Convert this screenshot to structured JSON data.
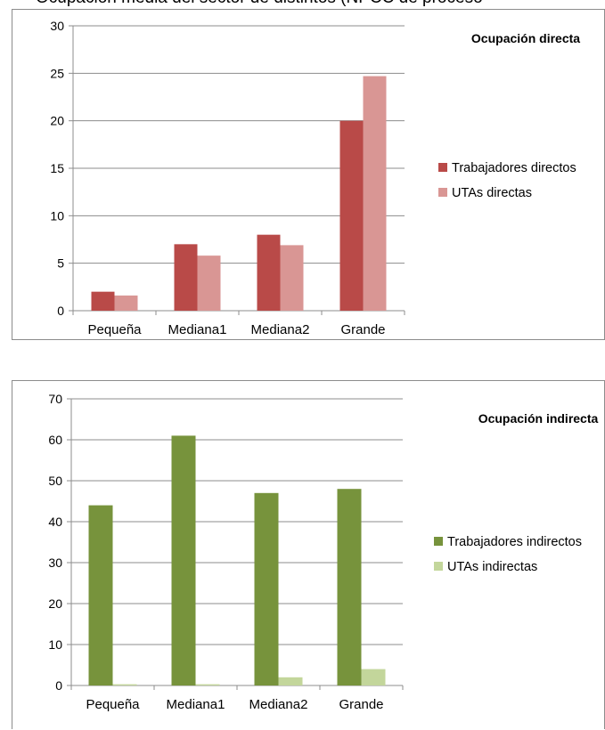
{
  "caption": "Ocupación media del sector de distintos (NPCC de proceso",
  "chart_data": [
    {
      "type": "bar",
      "title": "Ocupación directa",
      "categories": [
        "Pequeña",
        "Mediana1",
        "Mediana2",
        "Grande"
      ],
      "series": [
        {
          "name": "Trabajadores directos",
          "values": [
            2,
            7,
            8,
            20
          ],
          "color": "#b94a48"
        },
        {
          "name": "UTAs directas",
          "values": [
            1.6,
            5.8,
            6.9,
            24.7
          ],
          "color": "#d99694"
        }
      ],
      "ylim": [
        0,
        30
      ],
      "yticks": [
        0,
        5,
        10,
        15,
        20,
        25,
        30
      ],
      "grid": true,
      "legend": "right"
    },
    {
      "type": "bar",
      "title": "Ocupación indirecta",
      "categories": [
        "Pequeña",
        "Mediana1",
        "Mediana2",
        "Grande"
      ],
      "series": [
        {
          "name": "Trabajadores indirectos",
          "values": [
            44,
            61,
            47,
            48
          ],
          "color": "#77933c"
        },
        {
          "name": "UTAs indirectas",
          "values": [
            0.3,
            0.3,
            2,
            4
          ],
          "color": "#c3d69b"
        }
      ],
      "ylim": [
        0,
        70
      ],
      "yticks": [
        0,
        10,
        20,
        30,
        40,
        50,
        60,
        70
      ],
      "grid": true,
      "legend": "right"
    }
  ]
}
